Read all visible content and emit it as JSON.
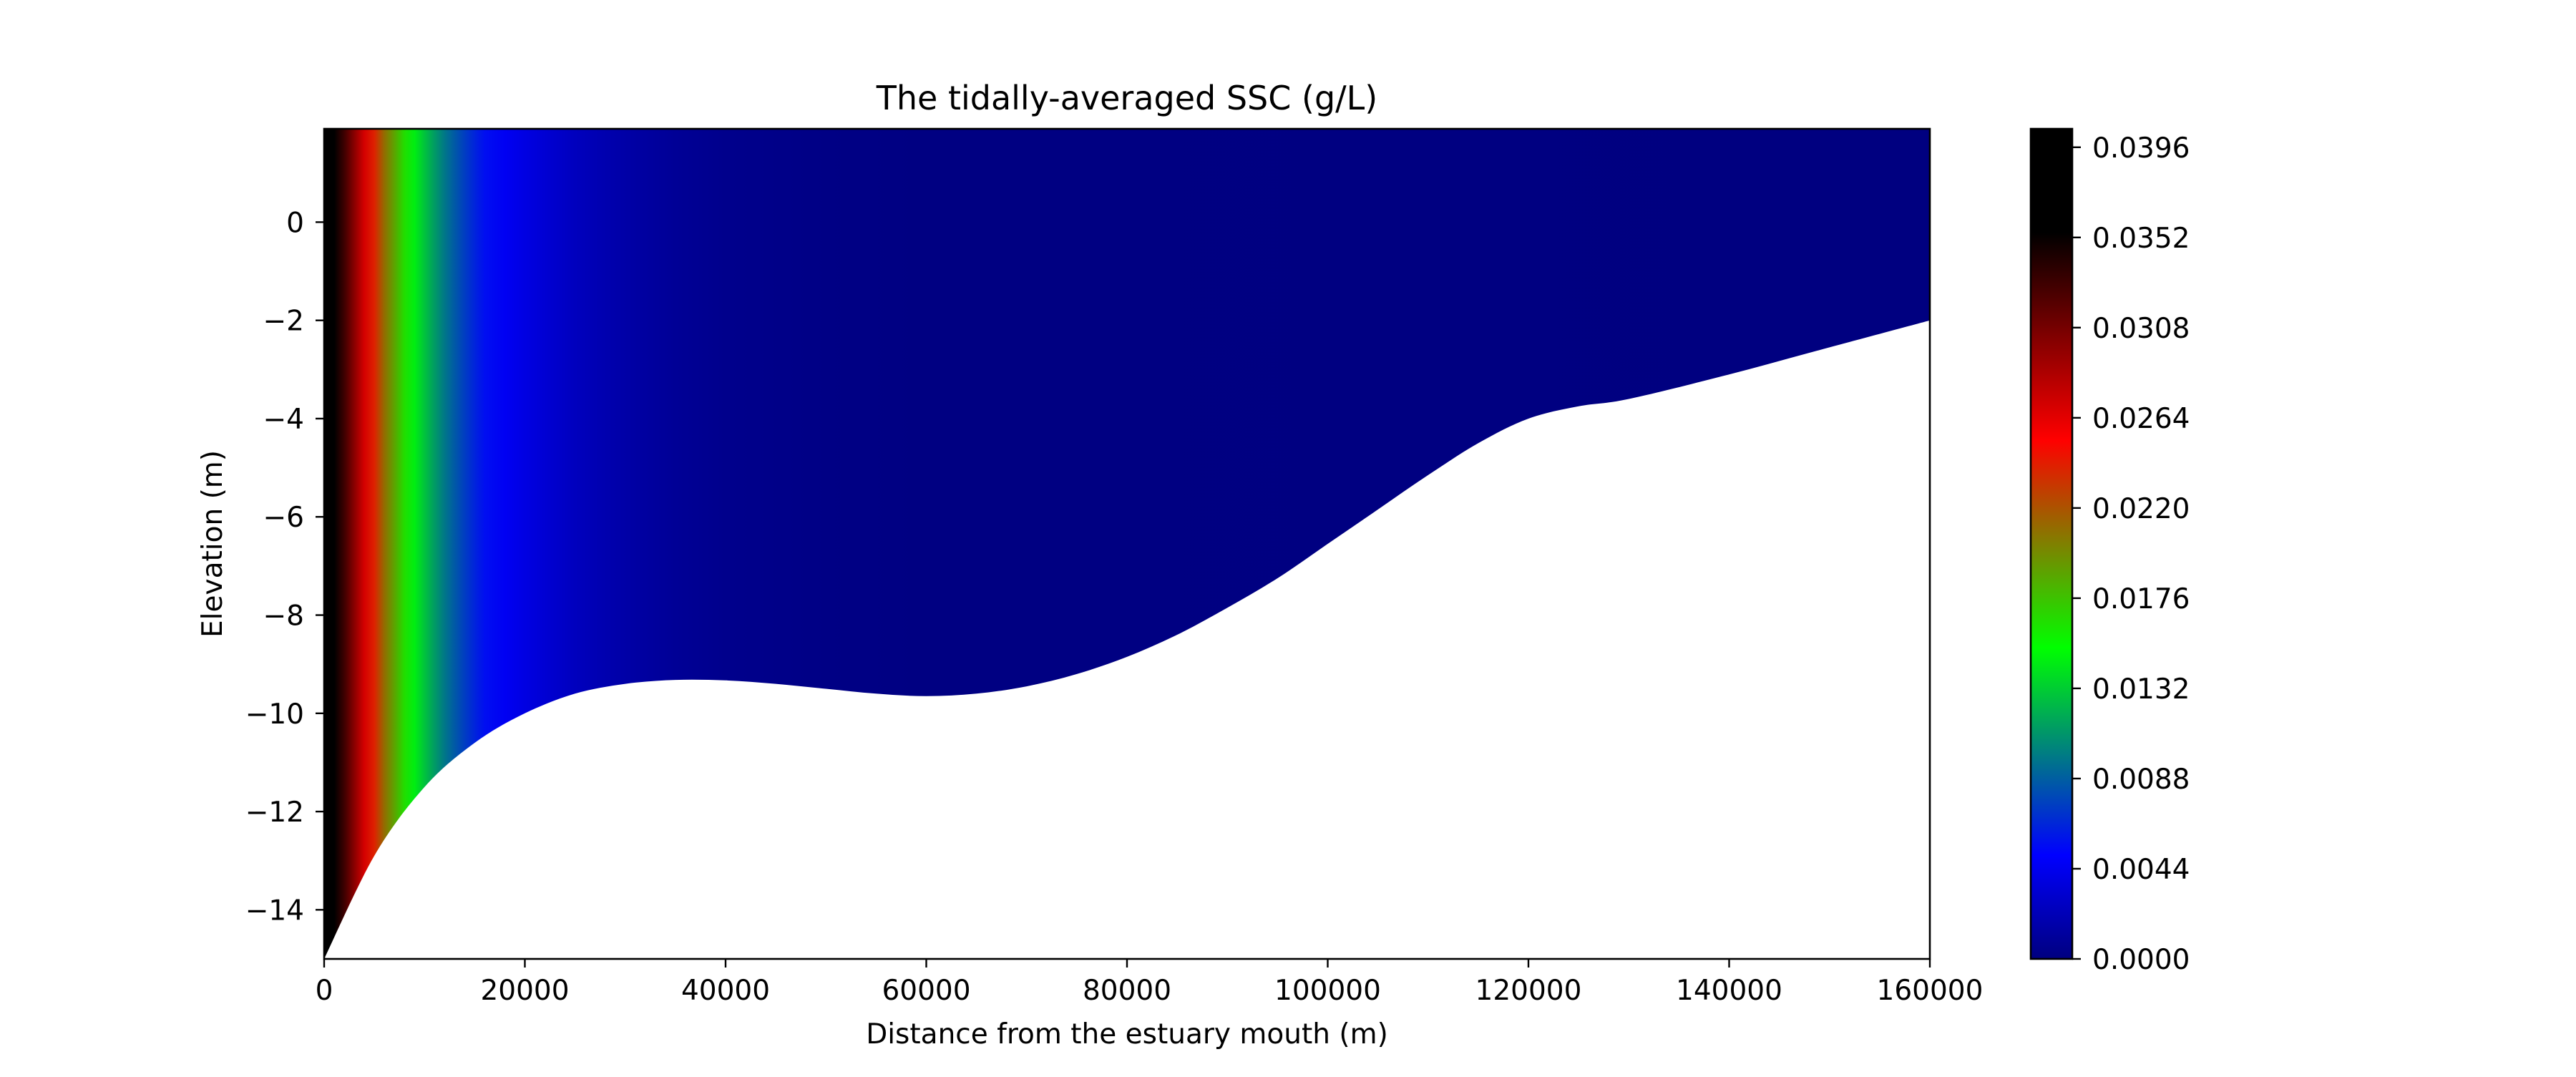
{
  "chart_data": {
    "type": "heatmap",
    "title": "The tidally-averaged SSC (g/L)",
    "xlabel": "Distance from the estuary mouth (m)",
    "ylabel": "Elevation (m)",
    "xlim": [
      0,
      160000
    ],
    "ylim": [
      -15,
      1.9
    ],
    "xticks": [
      0,
      20000,
      40000,
      60000,
      80000,
      100000,
      120000,
      140000,
      160000
    ],
    "xtick_labels": [
      "0",
      "20000",
      "40000",
      "60000",
      "80000",
      "100000",
      "120000",
      "140000",
      "160000"
    ],
    "yticks": [
      0,
      -2,
      -4,
      -6,
      -8,
      -10,
      -12,
      -14
    ],
    "ytick_labels": [
      "0",
      "−2",
      "−4",
      "−6",
      "−8",
      "−10",
      "−12",
      "−14"
    ],
    "water_surface": 1.9,
    "bed_profile": {
      "x": [
        0,
        5000,
        10000,
        15000,
        20000,
        25000,
        30000,
        35000,
        40000,
        45000,
        50000,
        55000,
        60000,
        65000,
        70000,
        75000,
        80000,
        85000,
        90000,
        95000,
        100000,
        105000,
        110000,
        115000,
        120000,
        125000,
        130000,
        140000,
        150000,
        160000
      ],
      "y": [
        -15.0,
        -12.9,
        -11.5,
        -10.6,
        -10.0,
        -9.6,
        -9.4,
        -9.32,
        -9.33,
        -9.4,
        -9.5,
        -9.6,
        -9.65,
        -9.6,
        -9.45,
        -9.2,
        -8.85,
        -8.4,
        -7.85,
        -7.25,
        -6.55,
        -5.85,
        -5.15,
        -4.5,
        -4.0,
        -3.75,
        -3.6,
        -3.1,
        -2.55,
        -2.0
      ]
    },
    "ssc_profile": {
      "x": [
        0,
        500,
        1000,
        2000,
        3000,
        4000,
        5000,
        6000,
        7000,
        8000,
        9000,
        10000,
        11000,
        12000,
        13000,
        14000,
        15000,
        16000,
        18000,
        20000,
        22000,
        25000,
        28000,
        31000,
        35000,
        40000,
        50000,
        60000,
        160000
      ],
      "values": [
        0.0396,
        0.0375,
        0.036,
        0.033,
        0.03,
        0.027,
        0.024,
        0.021,
        0.0188,
        0.0165,
        0.0145,
        0.0128,
        0.0112,
        0.0098,
        0.0086,
        0.0075,
        0.0065,
        0.0056,
        0.0046,
        0.0039,
        0.0033,
        0.0025,
        0.0019,
        0.0014,
        0.0009,
        0.0005,
        0.0002,
        0.0001,
        0.0
      ]
    },
    "colorbar": {
      "colormap": "jet",
      "vmin": 0.0,
      "vmax": 0.0405,
      "ticks": [
        0.0,
        0.0044,
        0.0088,
        0.0132,
        0.0176,
        0.022,
        0.0264,
        0.0308,
        0.0352,
        0.0396
      ],
      "tick_labels": [
        "0.0000",
        "0.0044",
        "0.0088",
        "0.0132",
        "0.0176",
        "0.0220",
        "0.0264",
        "0.0308",
        "0.0352",
        "0.0396"
      ]
    },
    "grid": false,
    "legend": "none"
  }
}
